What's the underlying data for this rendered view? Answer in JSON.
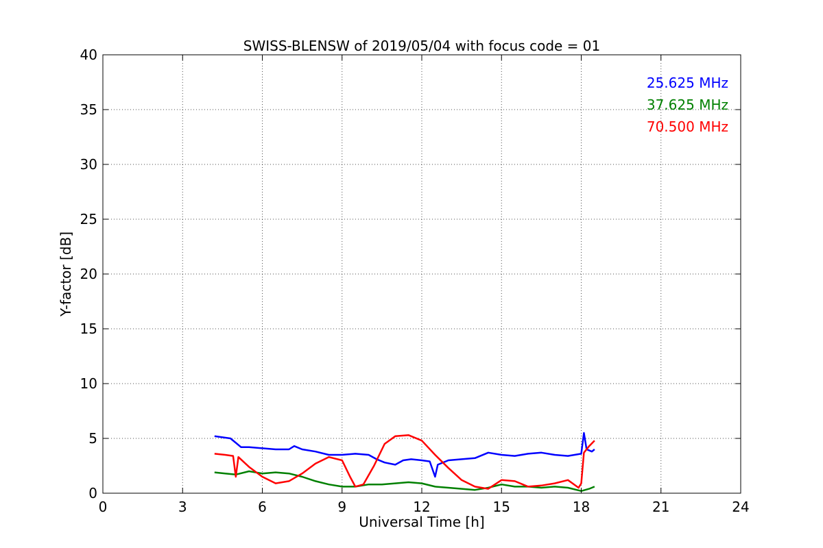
{
  "chart_data": {
    "type": "line",
    "title": "SWISS-BLENSW of 2019/05/04 with focus code = 01",
    "xlabel": "Universal Time [h]",
    "ylabel": "Y-factor [dB]",
    "xlim": [
      0,
      24
    ],
    "ylim": [
      0,
      40
    ],
    "xticks": [
      0,
      3,
      6,
      9,
      12,
      15,
      18,
      21,
      24
    ],
    "yticks": [
      0,
      5,
      10,
      15,
      20,
      25,
      30,
      35,
      40
    ],
    "grid": true,
    "legend_position": "top-right",
    "series": [
      {
        "name": "25.625 MHz",
        "color": "#0000ff",
        "points": [
          [
            4.2,
            5.2
          ],
          [
            4.5,
            5.1
          ],
          [
            4.8,
            5.0
          ],
          [
            5.0,
            4.6
          ],
          [
            5.2,
            4.2
          ],
          [
            5.5,
            4.2
          ],
          [
            6.0,
            4.1
          ],
          [
            6.5,
            4.0
          ],
          [
            7.0,
            4.0
          ],
          [
            7.2,
            4.3
          ],
          [
            7.5,
            4.0
          ],
          [
            8.0,
            3.8
          ],
          [
            8.5,
            3.5
          ],
          [
            9.0,
            3.5
          ],
          [
            9.5,
            3.6
          ],
          [
            10.0,
            3.5
          ],
          [
            10.3,
            3.1
          ],
          [
            10.6,
            2.8
          ],
          [
            11.0,
            2.6
          ],
          [
            11.3,
            3.0
          ],
          [
            11.6,
            3.1
          ],
          [
            12.0,
            3.0
          ],
          [
            12.3,
            2.9
          ],
          [
            12.5,
            1.5
          ],
          [
            12.6,
            2.6
          ],
          [
            13.0,
            3.0
          ],
          [
            13.5,
            3.1
          ],
          [
            14.0,
            3.2
          ],
          [
            14.5,
            3.7
          ],
          [
            15.0,
            3.5
          ],
          [
            15.5,
            3.4
          ],
          [
            16.0,
            3.6
          ],
          [
            16.5,
            3.7
          ],
          [
            17.0,
            3.5
          ],
          [
            17.5,
            3.4
          ],
          [
            18.0,
            3.6
          ],
          [
            18.1,
            5.5
          ],
          [
            18.2,
            4.0
          ],
          [
            18.4,
            3.8
          ],
          [
            18.5,
            4.0
          ]
        ]
      },
      {
        "name": "37.625 MHz",
        "color": "#008000",
        "points": [
          [
            4.2,
            1.9
          ],
          [
            4.6,
            1.8
          ],
          [
            5.0,
            1.7
          ],
          [
            5.5,
            2.0
          ],
          [
            6.0,
            1.8
          ],
          [
            6.5,
            1.9
          ],
          [
            7.0,
            1.8
          ],
          [
            7.5,
            1.5
          ],
          [
            8.0,
            1.1
          ],
          [
            8.5,
            0.8
          ],
          [
            9.0,
            0.6
          ],
          [
            9.5,
            0.6
          ],
          [
            10.0,
            0.8
          ],
          [
            10.5,
            0.8
          ],
          [
            11.0,
            0.9
          ],
          [
            11.5,
            1.0
          ],
          [
            12.0,
            0.9
          ],
          [
            12.5,
            0.6
          ],
          [
            13.0,
            0.5
          ],
          [
            13.5,
            0.4
          ],
          [
            14.0,
            0.3
          ],
          [
            14.5,
            0.5
          ],
          [
            15.0,
            0.8
          ],
          [
            15.5,
            0.6
          ],
          [
            16.0,
            0.6
          ],
          [
            16.5,
            0.5
          ],
          [
            17.0,
            0.6
          ],
          [
            17.5,
            0.5
          ],
          [
            18.0,
            0.2
          ],
          [
            18.3,
            0.4
          ],
          [
            18.5,
            0.6
          ]
        ]
      },
      {
        "name": "70.500 MHz",
        "color": "#ff0000",
        "points": [
          [
            4.2,
            3.6
          ],
          [
            4.6,
            3.5
          ],
          [
            4.9,
            3.4
          ],
          [
            5.0,
            1.5
          ],
          [
            5.1,
            3.3
          ],
          [
            5.5,
            2.4
          ],
          [
            6.0,
            1.5
          ],
          [
            6.5,
            0.9
          ],
          [
            7.0,
            1.1
          ],
          [
            7.5,
            1.8
          ],
          [
            8.0,
            2.7
          ],
          [
            8.5,
            3.3
          ],
          [
            9.0,
            3.0
          ],
          [
            9.3,
            1.5
          ],
          [
            9.5,
            0.6
          ],
          [
            9.8,
            0.8
          ],
          [
            10.2,
            2.5
          ],
          [
            10.6,
            4.5
          ],
          [
            11.0,
            5.2
          ],
          [
            11.5,
            5.3
          ],
          [
            12.0,
            4.8
          ],
          [
            12.5,
            3.5
          ],
          [
            13.0,
            2.3
          ],
          [
            13.5,
            1.2
          ],
          [
            14.0,
            0.6
          ],
          [
            14.5,
            0.4
          ],
          [
            15.0,
            1.2
          ],
          [
            15.5,
            1.1
          ],
          [
            16.0,
            0.6
          ],
          [
            16.5,
            0.7
          ],
          [
            17.0,
            0.9
          ],
          [
            17.5,
            1.2
          ],
          [
            17.9,
            0.5
          ],
          [
            18.0,
            0.9
          ],
          [
            18.1,
            3.7
          ],
          [
            18.3,
            4.3
          ],
          [
            18.5,
            4.8
          ]
        ]
      }
    ]
  }
}
